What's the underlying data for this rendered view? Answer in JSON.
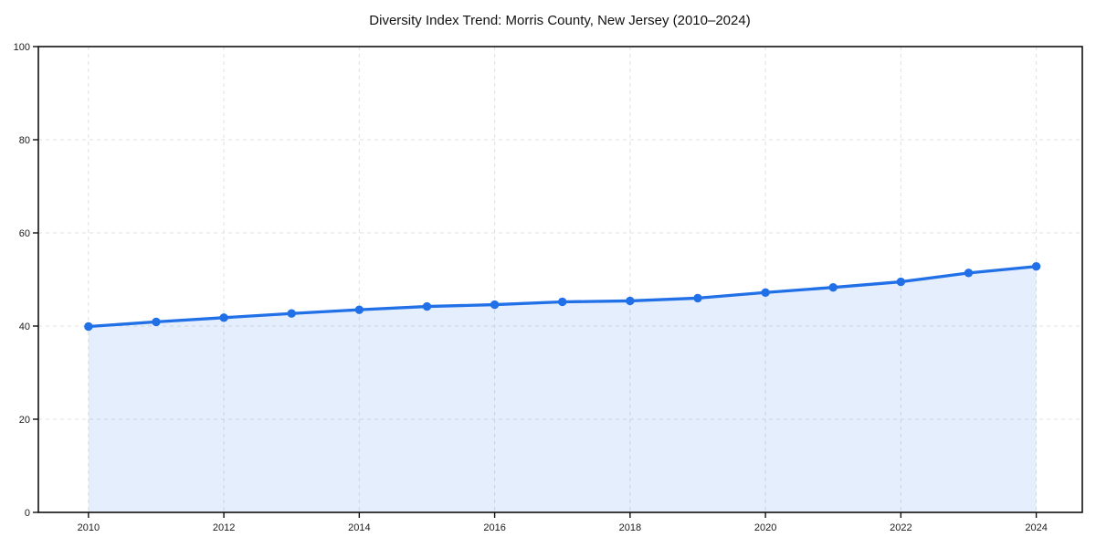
{
  "chart_data": {
    "type": "area",
    "title": "Diversity Index Trend: Morris County, New Jersey (2010–2024)",
    "series_name": "Diversity Index",
    "x": [
      2010,
      2011,
      2012,
      2013,
      2014,
      2015,
      2016,
      2017,
      2018,
      2019,
      2020,
      2021,
      2022,
      2023,
      2024
    ],
    "values": [
      39.9,
      40.9,
      41.8,
      42.7,
      43.5,
      44.2,
      44.6,
      45.2,
      45.4,
      46.0,
      47.2,
      48.3,
      49.5,
      51.4,
      52.8
    ],
    "xlabel": "",
    "ylabel": "",
    "xlim": [
      2009.26,
      2024.68
    ],
    "ylim": [
      0,
      100
    ],
    "xticks": [
      2010,
      2012,
      2014,
      2016,
      2018,
      2020,
      2022,
      2024
    ],
    "yticks": [
      0,
      20,
      40,
      60,
      80,
      100
    ],
    "grid": "dashed",
    "legend": "none",
    "colors": {
      "line": "#2170e8",
      "marker": "#2170e8",
      "fill": "#2170e8",
      "fill_opacity": 0.12,
      "grid": "#e0e0e0",
      "axis": "#111111",
      "text": "#1a1a1a"
    }
  }
}
